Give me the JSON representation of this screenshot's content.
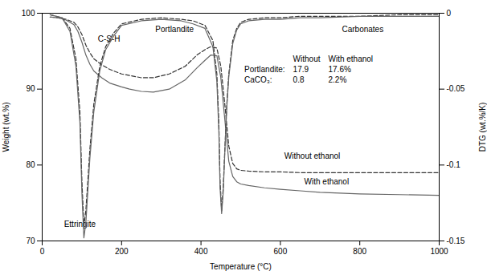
{
  "chart_data": {
    "type": "line",
    "xlabel": "Temperature (°C)",
    "ylabel": "Weight (wt.%)",
    "y2label": "DTG (wt.%/K)",
    "xlim": [
      0,
      1000
    ],
    "xticks": [
      0,
      200,
      400,
      600,
      800,
      1000
    ],
    "ylim": [
      70,
      100
    ],
    "yticks": [
      70,
      80,
      90,
      100
    ],
    "y2lim": [
      -0.15,
      0
    ],
    "y2ticks": [
      -0.15,
      -0.1,
      -0.05,
      0
    ],
    "grid": false,
    "series": [
      {
        "color": "#333333",
        "line_style": "dashed",
        "x": [
          20,
          40,
          60,
          80,
          90,
          100,
          110,
          120,
          130,
          150,
          170,
          200,
          220,
          250,
          280,
          320,
          360,
          390,
          410,
          425,
          440,
          450,
          460,
          470,
          480,
          490,
          500,
          520,
          560,
          600,
          650,
          700,
          750,
          800,
          900,
          1000
        ],
        "values": [
          99.5,
          99.4,
          99.2,
          98.8,
          98.2,
          97.2,
          95.8,
          94.8,
          94.0,
          93.2,
          92.6,
          92.0,
          91.8,
          91.5,
          91.5,
          92.0,
          93.0,
          94.5,
          95.2,
          95.6,
          95.4,
          93.0,
          88.0,
          82.5,
          80.2,
          79.5,
          79.3,
          79.2,
          79.1,
          79.1,
          79.0,
          79.0,
          79.0,
          79.0,
          79.0,
          79.0
        ]
      },
      {
        "color": "#666666",
        "line_style": "solid",
        "x": [
          20,
          40,
          60,
          80,
          90,
          100,
          110,
          120,
          130,
          150,
          170,
          200,
          220,
          250,
          280,
          320,
          360,
          390,
          410,
          425,
          440,
          450,
          460,
          470,
          480,
          490,
          500,
          520,
          560,
          600,
          650,
          700,
          750,
          800,
          900,
          1000
        ],
        "values": [
          99.5,
          99.4,
          99.1,
          98.5,
          97.6,
          96.2,
          94.5,
          93.3,
          92.4,
          91.5,
          90.8,
          90.3,
          90.0,
          89.7,
          89.6,
          90.0,
          91.2,
          92.8,
          93.8,
          94.5,
          94.4,
          91.5,
          86.0,
          80.5,
          78.5,
          77.8,
          77.5,
          77.3,
          77.0,
          76.8,
          76.6,
          76.4,
          76.3,
          76.2,
          76.1,
          76.0
        ]
      },
      {
        "color": "#333333",
        "line_style": "dashed",
        "axis": "y2",
        "x": [
          20,
          50,
          70,
          85,
          95,
          100,
          105,
          110,
          120,
          130,
          145,
          160,
          180,
          200,
          250,
          300,
          350,
          380,
          410,
          430,
          440,
          445,
          448,
          452,
          456,
          460,
          465,
          470,
          480,
          490,
          500,
          520,
          560,
          600,
          650,
          700,
          800,
          900,
          1000
        ],
        "values": [
          -0.001,
          -0.003,
          -0.01,
          -0.03,
          -0.065,
          -0.11,
          -0.14,
          -0.13,
          -0.09,
          -0.06,
          -0.035,
          -0.022,
          -0.013,
          -0.007,
          -0.004,
          -0.003,
          -0.004,
          -0.005,
          -0.008,
          -0.018,
          -0.04,
          -0.072,
          -0.11,
          -0.13,
          -0.115,
          -0.09,
          -0.06,
          -0.04,
          -0.018,
          -0.01,
          -0.006,
          -0.004,
          -0.003,
          -0.003,
          -0.002,
          -0.002,
          -0.002,
          -0.001,
          -0.001
        ]
      },
      {
        "color": "#666666",
        "line_style": "solid",
        "axis": "y2",
        "x": [
          20,
          50,
          70,
          85,
          95,
          100,
          105,
          110,
          120,
          130,
          145,
          160,
          180,
          200,
          250,
          300,
          350,
          380,
          410,
          430,
          440,
          445,
          448,
          452,
          456,
          460,
          465,
          470,
          480,
          490,
          500,
          520,
          560,
          600,
          650,
          700,
          800,
          900,
          1000
        ],
        "values": [
          -0.001,
          -0.003,
          -0.012,
          -0.035,
          -0.072,
          -0.118,
          -0.148,
          -0.138,
          -0.096,
          -0.065,
          -0.038,
          -0.024,
          -0.015,
          -0.008,
          -0.005,
          -0.004,
          -0.005,
          -0.007,
          -0.01,
          -0.022,
          -0.045,
          -0.078,
          -0.115,
          -0.132,
          -0.118,
          -0.092,
          -0.062,
          -0.042,
          -0.02,
          -0.011,
          -0.007,
          -0.005,
          -0.004,
          -0.004,
          -0.003,
          -0.003,
          -0.002,
          -0.002,
          -0.002
        ]
      }
    ],
    "annotations": [
      {
        "text": "C-S-H",
        "x": 140,
        "y": 96.2
      },
      {
        "text": "Ettringite",
        "x": 55,
        "y": 71.8
      },
      {
        "text": "Portlandite",
        "x": 285,
        "y": 97.5
      },
      {
        "text": "Carbonates",
        "x": 755,
        "y": 97.5
      },
      {
        "text": "Without ethanol",
        "x": 610,
        "y": 80.8
      },
      {
        "text": "With ethanol",
        "x": 660,
        "y": 77.5
      }
    ],
    "table": {
      "columns": [
        "Without",
        "With ethanol"
      ],
      "rows": [
        {
          "label": "Portlandite:",
          "cells": [
            "17.9",
            "17.6%"
          ]
        },
        {
          "label": "CaCO₃:",
          "cells": [
            "0.8",
            "2.2%"
          ]
        }
      ]
    }
  }
}
